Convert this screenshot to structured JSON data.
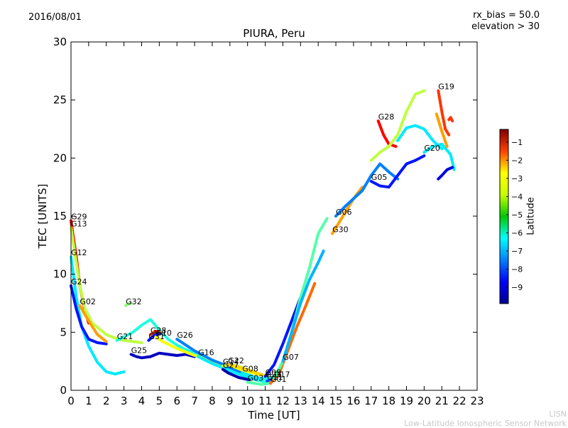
{
  "header": {
    "date": "2016/08/01",
    "rx_bias": "rx_bias = 50.0",
    "elevation": "elevation > 30"
  },
  "footer": {
    "line1": "LISN",
    "line2": "Low-Latitude Ionospheric Sensor Network"
  },
  "chart_data": {
    "type": "line",
    "title": "PIURA, Peru",
    "xlabel": "Time [UT]",
    "ylabel": "TEC [UNITS]",
    "xlim": [
      0,
      23
    ],
    "ylim": [
      0,
      30
    ],
    "xticks": [
      "0",
      "1",
      "2",
      "3",
      "4",
      "5",
      "6",
      "7",
      "8",
      "9",
      "10",
      "11",
      "12",
      "13",
      "14",
      "15",
      "16",
      "17",
      "18",
      "19",
      "20",
      "21",
      "22",
      "23"
    ],
    "yticks": [
      "0",
      "5",
      "10",
      "15",
      "20",
      "25",
      "30"
    ],
    "grid": false,
    "colorbar": {
      "label": "Latitude",
      "range": [
        -9.9,
        -0.3
      ],
      "ticks": [
        "-1",
        "-2",
        "-3",
        "-4",
        "-5",
        "-6",
        "-7",
        "-8",
        "-9"
      ],
      "colormap": "jet"
    },
    "series": [
      {
        "name": "G29",
        "lat": -1.5,
        "x": [
          0.0,
          0.1,
          0.3,
          0.5,
          0.8,
          1.0
        ],
        "y": [
          14.6,
          13.5,
          11.5,
          9.0,
          6.8,
          5.8
        ]
      },
      {
        "name": "G13",
        "lat": -4.5,
        "x": [
          0.0,
          0.2,
          0.5,
          0.8,
          1.2,
          1.6,
          2.0,
          2.5,
          3.0,
          3.5,
          4.0
        ],
        "y": [
          14.0,
          12.0,
          9.0,
          7.0,
          5.8,
          5.3,
          4.8,
          4.5,
          4.3,
          4.2,
          4.1
        ]
      },
      {
        "name": "G12",
        "lat": -6.5,
        "x": [
          0.0,
          0.3,
          0.6,
          1.0,
          1.5,
          2.0,
          2.5,
          3.0
        ],
        "y": [
          11.5,
          8.0,
          5.5,
          3.8,
          2.4,
          1.6,
          1.4,
          1.6
        ]
      },
      {
        "name": "G24",
        "lat": -8.5,
        "x": [
          0.0,
          0.3,
          0.6,
          1.0,
          1.5,
          2.0
        ],
        "y": [
          9.0,
          7.0,
          5.5,
          4.4,
          4.1,
          4.0
        ]
      },
      {
        "name": "G02",
        "lat": -3.0,
        "x": [
          0.5,
          0.8,
          1.2,
          1.5,
          2.0
        ],
        "y": [
          7.3,
          6.5,
          5.5,
          4.8,
          4.2
        ]
      },
      {
        "name": "G21",
        "lat": -6.0,
        "x": [
          2.6,
          3.0,
          3.5,
          4.0,
          4.5,
          5.0,
          5.5,
          6.0,
          6.5,
          7.0,
          7.5,
          8.0,
          8.5,
          9.0,
          9.5,
          10.0,
          10.5,
          11.0
        ],
        "y": [
          4.3,
          4.6,
          5.0,
          5.6,
          6.1,
          5.2,
          4.4,
          3.9,
          3.5,
          3.2,
          2.9,
          2.6,
          2.3,
          2.0,
          1.6,
          1.2,
          0.9,
          0.7
        ]
      },
      {
        "name": "G32",
        "lat": -5.0,
        "x": [
          3.1,
          3.2,
          3.4
        ],
        "y": [
          7.3,
          7.4,
          7.5
        ]
      },
      {
        "name": "G28",
        "lat": -2.0,
        "x": [
          4.5,
          4.7,
          4.9,
          5.1
        ],
        "y": [
          4.8,
          5.0,
          5.1,
          4.9
        ]
      },
      {
        "name": "G31",
        "lat": -8.5,
        "x": [
          4.4,
          4.6,
          4.8,
          5.0
        ],
        "y": [
          4.3,
          4.6,
          4.8,
          4.9
        ]
      },
      {
        "name": "G25",
        "lat": -9.3,
        "x": [
          3.4,
          3.7,
          4.0,
          4.5,
          5.0,
          5.5,
          6.0,
          6.5,
          7.0
        ],
        "y": [
          3.1,
          2.9,
          2.8,
          2.9,
          3.2,
          3.1,
          3.0,
          3.1,
          2.9
        ]
      },
      {
        "name": "G10",
        "lat": -4.0,
        "x": [
          4.8,
          5.2,
          5.6,
          6.0,
          6.5,
          7.0,
          7.5,
          8.0,
          8.5,
          9.0,
          9.5,
          10.0,
          10.5,
          11.0
        ],
        "y": [
          4.6,
          4.2,
          3.9,
          3.6,
          3.3,
          3.0,
          2.8,
          2.5,
          2.2,
          2.0,
          1.8,
          1.6,
          1.4,
          1.3
        ]
      },
      {
        "name": "G26",
        "lat": -7.5,
        "x": [
          6.0,
          6.5,
          7.0,
          7.5,
          8.0,
          8.5,
          9.0,
          9.5,
          10.0
        ],
        "y": [
          4.4,
          3.9,
          3.4,
          3.0,
          2.6,
          2.3,
          1.9,
          1.6,
          1.3
        ]
      },
      {
        "name": "G16",
        "lat": -6.5,
        "x": [
          7.2,
          7.6,
          8.0,
          8.5,
          9.0,
          9.5,
          10.0,
          10.5
        ],
        "y": [
          2.9,
          2.6,
          2.3,
          2.0,
          1.7,
          1.4,
          1.1,
          0.9
        ]
      },
      {
        "name": "G14",
        "lat": -4.5,
        "x": [
          8.6,
          9.0,
          9.4,
          9.8,
          10.2
        ],
        "y": [
          2.1,
          2.2,
          2.1,
          1.9,
          1.6
        ]
      },
      {
        "name": "G22",
        "lat": -3.5,
        "x": [
          8.9,
          9.3,
          9.7,
          10.1,
          10.5,
          10.9
        ],
        "y": [
          2.2,
          2.1,
          1.9,
          1.7,
          1.5,
          1.3
        ]
      },
      {
        "name": "G27",
        "lat": -9.5,
        "x": [
          8.6,
          8.9,
          9.2,
          9.5,
          9.8,
          10.1
        ],
        "y": [
          1.8,
          1.5,
          1.3,
          1.1,
          1.0,
          0.9
        ]
      },
      {
        "name": "G08",
        "lat": -6.5,
        "x": [
          9.7,
          10.1,
          10.5,
          10.9,
          11.3
        ],
        "y": [
          1.5,
          1.3,
          1.1,
          1.0,
          0.9
        ]
      },
      {
        "name": "G03",
        "lat": -5.5,
        "x": [
          10.0,
          10.4,
          10.8,
          11.2
        ],
        "y": [
          0.7,
          0.6,
          0.5,
          0.6
        ]
      },
      {
        "name": "G23",
        "lat": -6.0,
        "x": [
          11.0,
          11.3,
          11.6
        ],
        "y": [
          1.0,
          1.1,
          1.2
        ]
      },
      {
        "name": "G11",
        "lat": -8.0,
        "x": [
          11.1,
          11.3,
          11.5
        ],
        "y": [
          0.8,
          0.9,
          1.0
        ]
      },
      {
        "name": "G09",
        "lat": -8.5,
        "x": [
          11.0,
          11.5,
          12.0,
          12.5,
          13.0
        ],
        "y": [
          1.2,
          2.2,
          4.0,
          6.0,
          8.0
        ]
      },
      {
        "name": "G01",
        "lat": -2.5,
        "x": [
          11.3,
          11.8,
          12.3,
          12.8,
          13.3,
          13.8
        ],
        "y": [
          0.6,
          1.5,
          3.5,
          5.5,
          7.3,
          9.2
        ]
      },
      {
        "name": "G17",
        "lat": -5.5,
        "x": [
          11.5,
          12.0,
          12.5,
          13.0,
          13.5,
          14.0,
          14.5
        ],
        "y": [
          1.0,
          2.5,
          5.0,
          8.0,
          10.5,
          13.5,
          14.8
        ]
      },
      {
        "name": "G07",
        "lat": -7.0,
        "x": [
          12.0,
          12.5,
          13.0,
          13.5,
          14.0,
          14.3
        ],
        "y": [
          2.5,
          5.0,
          7.5,
          9.5,
          11.0,
          12.0
        ]
      },
      {
        "name": "G30",
        "lat": -3.0,
        "x": [
          14.8,
          15.2,
          15.6,
          16.0,
          16.5
        ],
        "y": [
          13.5,
          14.5,
          15.5,
          16.5,
          17.5
        ]
      },
      {
        "name": "G06",
        "lat": -7.5,
        "x": [
          15.0,
          15.5,
          16.0,
          16.5,
          17.0,
          17.5,
          18.0,
          18.5
        ],
        "y": [
          15.0,
          15.8,
          16.5,
          17.2,
          18.5,
          19.5,
          18.8,
          18.2
        ]
      },
      {
        "name": "G28",
        "lat": -1.5,
        "x": [
          17.4,
          17.7,
          18.0,
          18.4
        ],
        "y": [
          23.2,
          22.0,
          21.2,
          21.0
        ]
      },
      {
        "name": "G05",
        "lat": -8.5,
        "x": [
          17.0,
          17.5,
          18.0,
          18.5,
          19.0,
          19.5,
          20.0
        ],
        "y": [
          18.0,
          17.6,
          17.5,
          18.5,
          19.5,
          19.8,
          20.2
        ]
      },
      {
        "name": "G19",
        "lat": -2.0,
        "x": [
          20.8,
          21.0,
          21.2,
          21.4
        ],
        "y": [
          25.8,
          24.0,
          22.5,
          22.0
        ]
      },
      {
        "name": "G20",
        "lat": -6.5,
        "x": [
          20.0,
          20.5,
          21.0,
          21.5,
          21.7
        ],
        "y": [
          20.5,
          21.0,
          21.2,
          20.3,
          19.0
        ]
      },
      {
        "name": "",
        "lat": -4.5,
        "x": [
          17.0,
          17.5,
          18.0,
          18.5,
          19.0,
          19.5,
          20.0
        ],
        "y": [
          19.8,
          20.5,
          21.0,
          22.0,
          24.0,
          25.5,
          25.8
        ]
      },
      {
        "name": "",
        "lat": -6.5,
        "x": [
          18.5,
          19.0,
          19.5,
          20.0,
          20.5,
          21.0
        ],
        "y": [
          21.5,
          22.6,
          22.8,
          22.5,
          21.5,
          20.8
        ]
      },
      {
        "name": "",
        "lat": -9.0,
        "x": [
          20.8,
          21.0,
          21.3,
          21.6
        ],
        "y": [
          18.2,
          18.5,
          19.0,
          19.2
        ]
      },
      {
        "name": "",
        "lat": -3.0,
        "x": [
          20.7,
          21.0,
          21.3
        ],
        "y": [
          23.8,
          22.3,
          21.0
        ]
      },
      {
        "name": "",
        "lat": -2.0,
        "x": [
          21.4,
          21.5,
          21.6
        ],
        "y": [
          23.3,
          23.5,
          23.2
        ]
      }
    ]
  }
}
